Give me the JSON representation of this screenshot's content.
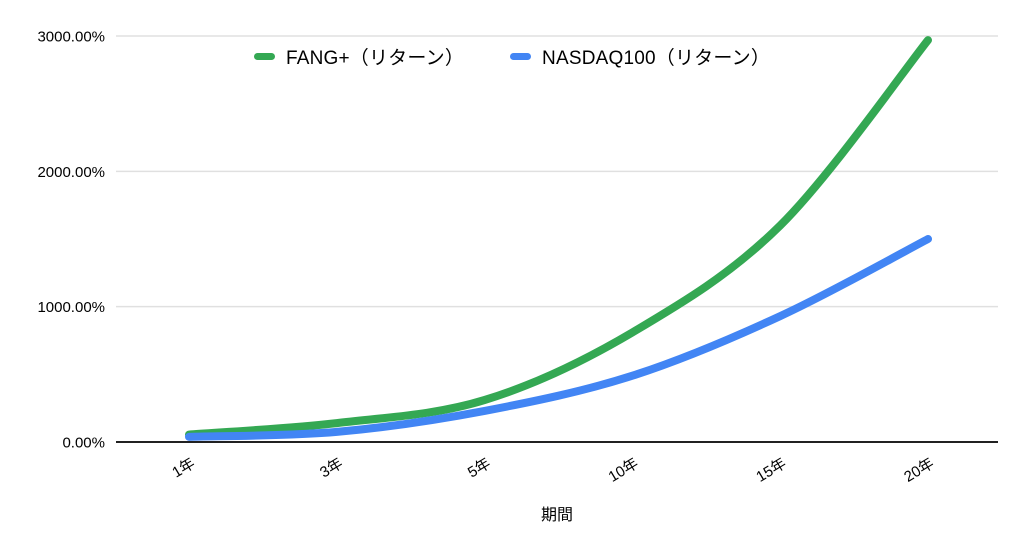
{
  "chart_data": {
    "type": "line",
    "title": "",
    "xlabel": "期間",
    "ylabel": "",
    "categories": [
      "1年",
      "3年",
      "5年",
      "10年",
      "15年",
      "20年"
    ],
    "series": [
      {
        "name": "FANG+（リターン）",
        "color": "#34a853",
        "values": [
          55,
          140,
          310,
          810,
          1600,
          2970
        ]
      },
      {
        "name": "NASDAQ100（リターン）",
        "color": "#4285f4",
        "values": [
          38,
          75,
          230,
          490,
          930,
          1500
        ]
      }
    ],
    "ylim": [
      0,
      3000
    ],
    "y_ticks": [
      0,
      1000,
      2000,
      3000
    ],
    "y_tick_labels": [
      "0.00%",
      "1000.00%",
      "2000.00%",
      "3000.00%"
    ],
    "grid": true,
    "legend_position": "top",
    "colors": {
      "grid_line": "#e0e0e0",
      "axis_line": "#212121",
      "tick_text": "#000000",
      "background": "#ffffff"
    }
  }
}
